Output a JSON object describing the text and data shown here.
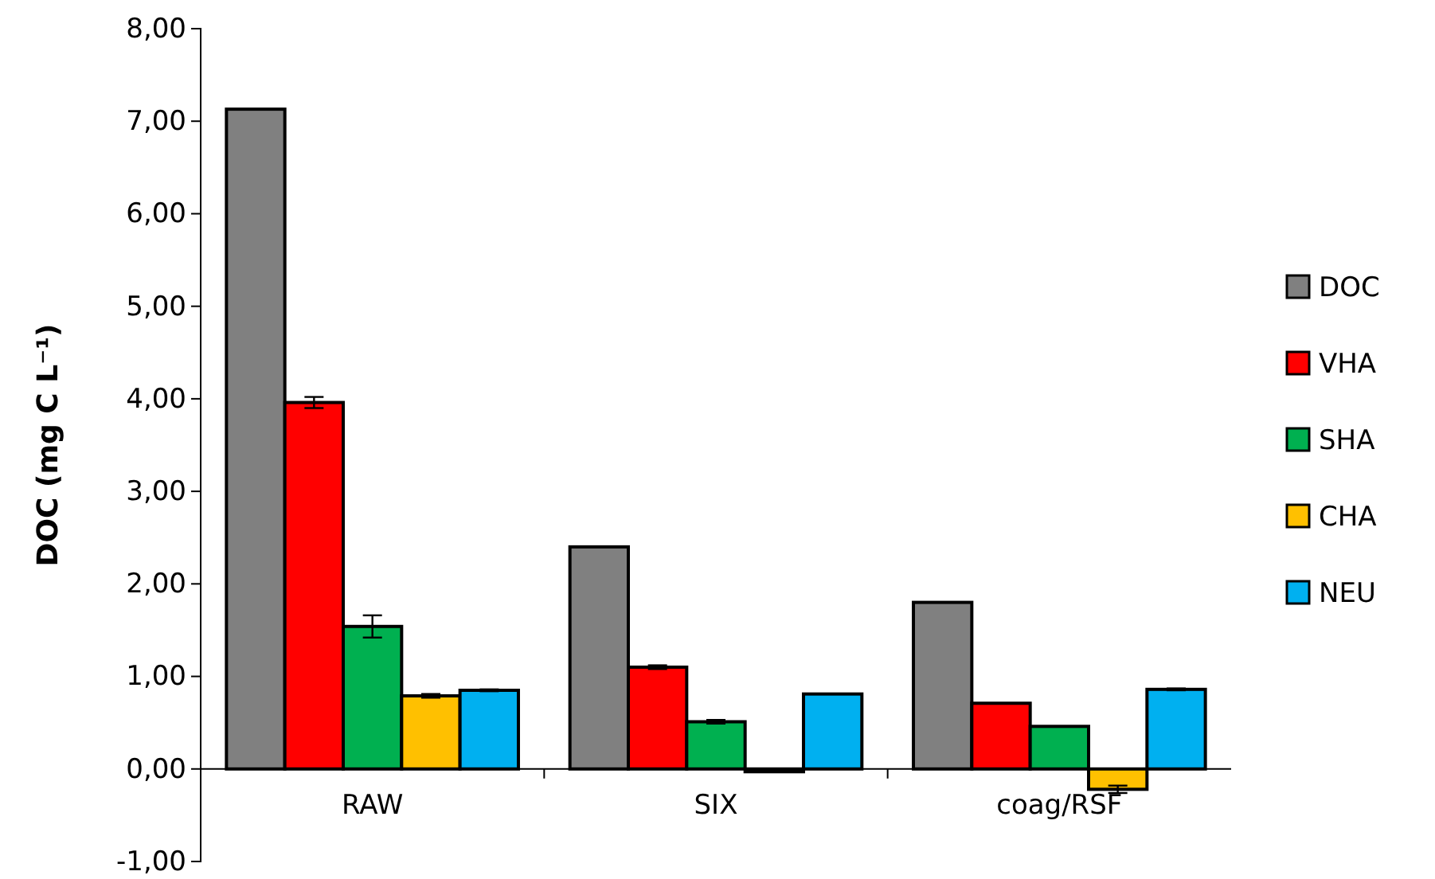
{
  "chart_data": {
    "type": "bar",
    "ylabel": "DOC (mg C L⁻¹)",
    "categories": [
      "RAW",
      "SIX",
      "coag/RSF"
    ],
    "series": [
      {
        "name": "DOC",
        "color": "#808080",
        "values": [
          7.13,
          2.4,
          1.8
        ]
      },
      {
        "name": "VHA",
        "color": "#ff0000",
        "values": [
          3.96,
          1.1,
          0.71
        ],
        "errors": [
          0.06,
          0.02,
          null
        ]
      },
      {
        "name": "SHA",
        "color": "#00b050",
        "values": [
          1.54,
          0.51,
          0.46
        ],
        "errors": [
          0.12,
          0.02,
          null
        ]
      },
      {
        "name": "CHA",
        "color": "#ffc000",
        "values": [
          0.79,
          -0.03,
          -0.22
        ],
        "errors": [
          0.02,
          null,
          0.04
        ]
      },
      {
        "name": "NEU",
        "color": "#00b0f0",
        "values": [
          0.85,
          0.81,
          0.86
        ],
        "errors": [
          0.01,
          null,
          0.01
        ]
      }
    ],
    "ylim": [
      -1,
      8
    ],
    "yticks": [
      {
        "value": -1,
        "label": "-1,00"
      },
      {
        "value": 0,
        "label": "0,00"
      },
      {
        "value": 1,
        "label": "1,00"
      },
      {
        "value": 2,
        "label": "2,00"
      },
      {
        "value": 3,
        "label": "3,00"
      },
      {
        "value": 4,
        "label": "4,00"
      },
      {
        "value": 5,
        "label": "5,00"
      },
      {
        "value": 6,
        "label": "6,00"
      },
      {
        "value": 7,
        "label": "7,00"
      },
      {
        "value": 8,
        "label": "8,00"
      }
    ],
    "legend": "right",
    "grid": false
  }
}
